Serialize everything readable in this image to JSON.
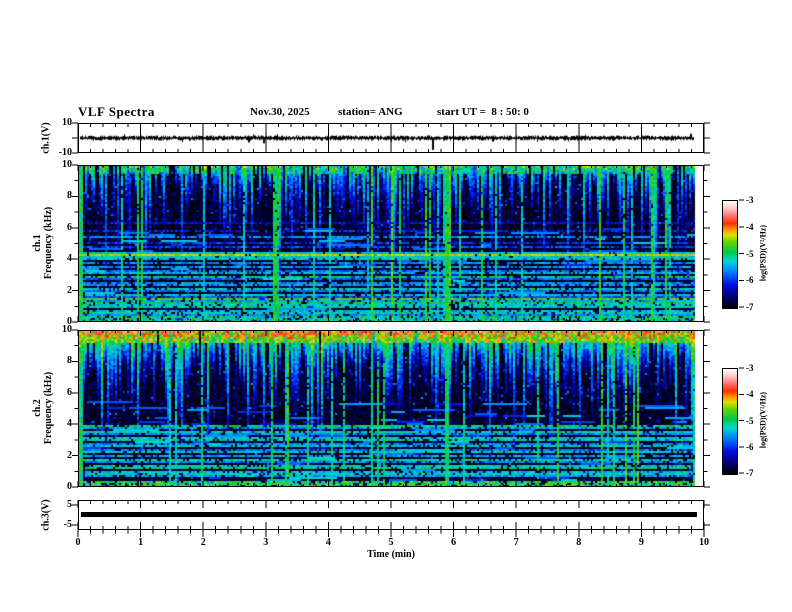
{
  "header": {
    "title": "VLF Spectra",
    "date": "Nov.30, 2025",
    "station": "station= ANG",
    "start_ut": "start UT =  8 : 50: 0"
  },
  "colors": {
    "axis": "#000000",
    "background": "#ffffff",
    "trace": "#000000"
  },
  "colormap": {
    "domain": [
      -7,
      -3
    ],
    "stops": [
      [
        0,
        "#000000"
      ],
      [
        0.1,
        "#000070"
      ],
      [
        0.22,
        "#0010e0"
      ],
      [
        0.34,
        "#0080ff"
      ],
      [
        0.44,
        "#00d8d0"
      ],
      [
        0.52,
        "#00c844"
      ],
      [
        0.62,
        "#66d400"
      ],
      [
        0.68,
        "#dce000"
      ],
      [
        0.73,
        "#ff9800"
      ],
      [
        0.79,
        "#ff3000"
      ],
      [
        0.86,
        "#ff7070"
      ],
      [
        0.93,
        "#ffc6c6"
      ],
      [
        1,
        "#ffffff"
      ]
    ]
  },
  "xaxis": {
    "label": "Time (min)",
    "ticks": [
      0,
      1,
      2,
      3,
      4,
      5,
      6,
      7,
      8,
      9,
      10
    ],
    "minor_step": 0.2,
    "lim": [
      0,
      10
    ],
    "data_end": 9.83
  },
  "chart_data": [
    {
      "id": "ch1_voltage",
      "type": "line",
      "ylabel": "ch.1(V)",
      "yticks": [
        10,
        -10
      ],
      "ylim": [
        -10,
        10
      ],
      "trace": {
        "seed": 5,
        "baseline_v": 0,
        "noise_v": 1.5,
        "spikes": [
          {
            "t": 2.72,
            "v": -3.2
          },
          {
            "t": 2.95,
            "v": -3.8
          },
          {
            "t": 5.66,
            "v": -8.5
          },
          {
            "t": 6.62,
            "v": -2.6
          },
          {
            "t": 9.78,
            "v": 3.0
          }
        ]
      }
    },
    {
      "id": "ch1_spectrogram",
      "type": "heatmap",
      "ylabel_channel": "ch.1",
      "ylabel_axis": "Frequency (kHz)",
      "yticks": [
        0,
        2,
        4,
        6,
        8,
        10
      ],
      "ylim_khz": [
        0,
        10
      ],
      "colorbar": {
        "label": "log(PSD)(V²/Hz)",
        "ticks": [
          -3,
          -4,
          -5,
          -6,
          -7
        ]
      },
      "texture": {
        "seed": 7,
        "background_psd": -6.85,
        "speckle": 0.06,
        "streaks": {
          "density": 0.62,
          "depth": [
            0.12,
            0.62
          ],
          "psd": [
            -5.9,
            -4.5
          ]
        },
        "top_band": {
          "f_min": 9.55,
          "coverage": 0.45,
          "psd": [
            -5.6,
            -4.2
          ]
        },
        "full_lines": {
          "count": 32,
          "psd": [
            -5.4,
            -4.6
          ]
        },
        "strong_band": {
          "f0": 4.18,
          "f1": 4.48,
          "psd": -4.35,
          "halo_psd": -5.3
        },
        "bottom_band": {
          "f_max": 0.22,
          "coverage": 0.75,
          "psd": [
            -5.6,
            -4.6
          ]
        },
        "dash_segments": {
          "count": 130,
          "f_max": 6,
          "psd": [
            -6.2,
            -5.2
          ]
        },
        "horizontal_lines": [
          [
            6.4,
            -6.2
          ],
          [
            5.9,
            -6.1
          ],
          [
            5.45,
            -5.6
          ],
          [
            5.1,
            -6
          ],
          [
            4.8,
            -5.9
          ],
          [
            4,
            -5.2
          ],
          [
            3.8,
            -5.6
          ],
          [
            3.55,
            -5.5
          ],
          [
            3.3,
            -5.7
          ],
          [
            3.1,
            -5.4
          ],
          [
            2.9,
            -5
          ],
          [
            2.7,
            -5.8
          ],
          [
            2.5,
            -5.6
          ],
          [
            2.3,
            -5.5
          ],
          [
            2.1,
            -5.2
          ],
          [
            1.95,
            -5.7
          ],
          [
            1.75,
            -5.3
          ],
          [
            1.6,
            -5.8
          ],
          [
            1.45,
            -4.7
          ],
          [
            1.3,
            -5.5
          ],
          [
            1.15,
            -5
          ],
          [
            1,
            -5.3
          ],
          [
            0.85,
            -5.1
          ],
          [
            0.7,
            -5.4
          ],
          [
            0.55,
            -5.2
          ],
          [
            0.4,
            -5.6
          ]
        ]
      }
    },
    {
      "id": "ch2_spectrogram",
      "type": "heatmap",
      "ylabel_channel": "ch.2",
      "ylabel_axis": "Frequency (kHz)",
      "yticks": [
        0,
        2,
        4,
        6,
        8,
        10
      ],
      "ylim_khz": [
        0,
        10
      ],
      "colorbar": {
        "label": "log(PSD)(V²/Hz)",
        "ticks": [
          -3,
          -4,
          -5,
          -6,
          -7
        ]
      },
      "texture": {
        "seed": 23,
        "background_psd": -6.85,
        "speckle": 0.06,
        "streaks": {
          "density": 0.8,
          "depth": [
            0.18,
            0.6
          ],
          "psd": [
            -5.3,
            -4.0
          ]
        },
        "top_band": {
          "f_min": 9.35,
          "coverage": 0.92,
          "psd": [
            -4.9,
            -3.4
          ]
        },
        "full_lines": {
          "count": 26,
          "psd": [
            -5.4,
            -4.6
          ]
        },
        "bottom_band": {
          "f_max": 0.3,
          "coverage": 0.8,
          "psd": [
            -5.4,
            -4.4
          ]
        },
        "dash_segments": {
          "count": 120,
          "f_max": 5.5,
          "psd": [
            -6.2,
            -5.2
          ]
        },
        "horizontal_lines": [
          [
            3.95,
            -5
          ],
          [
            3.75,
            -5.5
          ],
          [
            3.55,
            -5.2
          ],
          [
            3.35,
            -5.6
          ],
          [
            3.15,
            -5.3
          ],
          [
            2.95,
            -5.1
          ],
          [
            2.75,
            -5.6
          ],
          [
            2.55,
            -5.3
          ],
          [
            2.35,
            -5.7
          ],
          [
            2.15,
            -5.2
          ],
          [
            1.95,
            -5.5
          ],
          [
            1.75,
            -5.1
          ],
          [
            1.55,
            -5.6
          ],
          [
            1.35,
            -5.3
          ],
          [
            1.15,
            -5
          ],
          [
            0.95,
            -5.4
          ],
          [
            0.75,
            -5.2
          ],
          [
            0.6,
            -5.5
          ]
        ]
      }
    },
    {
      "id": "ch3_voltage",
      "type": "line",
      "ylabel": "ch.3(V)",
      "yticks": [
        5,
        -5
      ],
      "ylim": [
        -7.5,
        7.5
      ],
      "trace": {
        "constant_v": 0.5
      }
    }
  ]
}
